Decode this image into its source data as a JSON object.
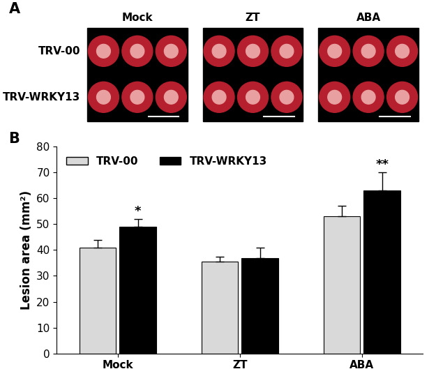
{
  "panel_labels": [
    "A",
    "B"
  ],
  "panel_a": {
    "columns": [
      "Mock",
      "ZT",
      "ABA"
    ],
    "rows": [
      "TRV-00",
      "TRV-WRKY13"
    ]
  },
  "chart_data": {
    "type": "bar",
    "y_label": "Lesion area (mm²)",
    "categories": [
      "Mock",
      "ZT",
      "ABA"
    ],
    "series": [
      {
        "name": "TRV-00",
        "color": "#d9d9d9",
        "values": [
          41,
          35.5,
          53
        ],
        "errors": [
          3,
          2,
          4
        ]
      },
      {
        "name": "TRV-WRKY13",
        "color": "#000000",
        "values": [
          49,
          37,
          63
        ],
        "errors": [
          3,
          4,
          7
        ]
      }
    ],
    "annotations": [
      {
        "category": "Mock",
        "series": "TRV-WRKY13",
        "text": "*"
      },
      {
        "category": "ABA",
        "series": "TRV-WRKY13",
        "text": "**"
      }
    ],
    "ylim": [
      0,
      80
    ],
    "yticks": [
      0,
      10,
      20,
      30,
      40,
      50,
      60,
      70,
      80
    ],
    "legend": "upper left",
    "grid": false
  }
}
